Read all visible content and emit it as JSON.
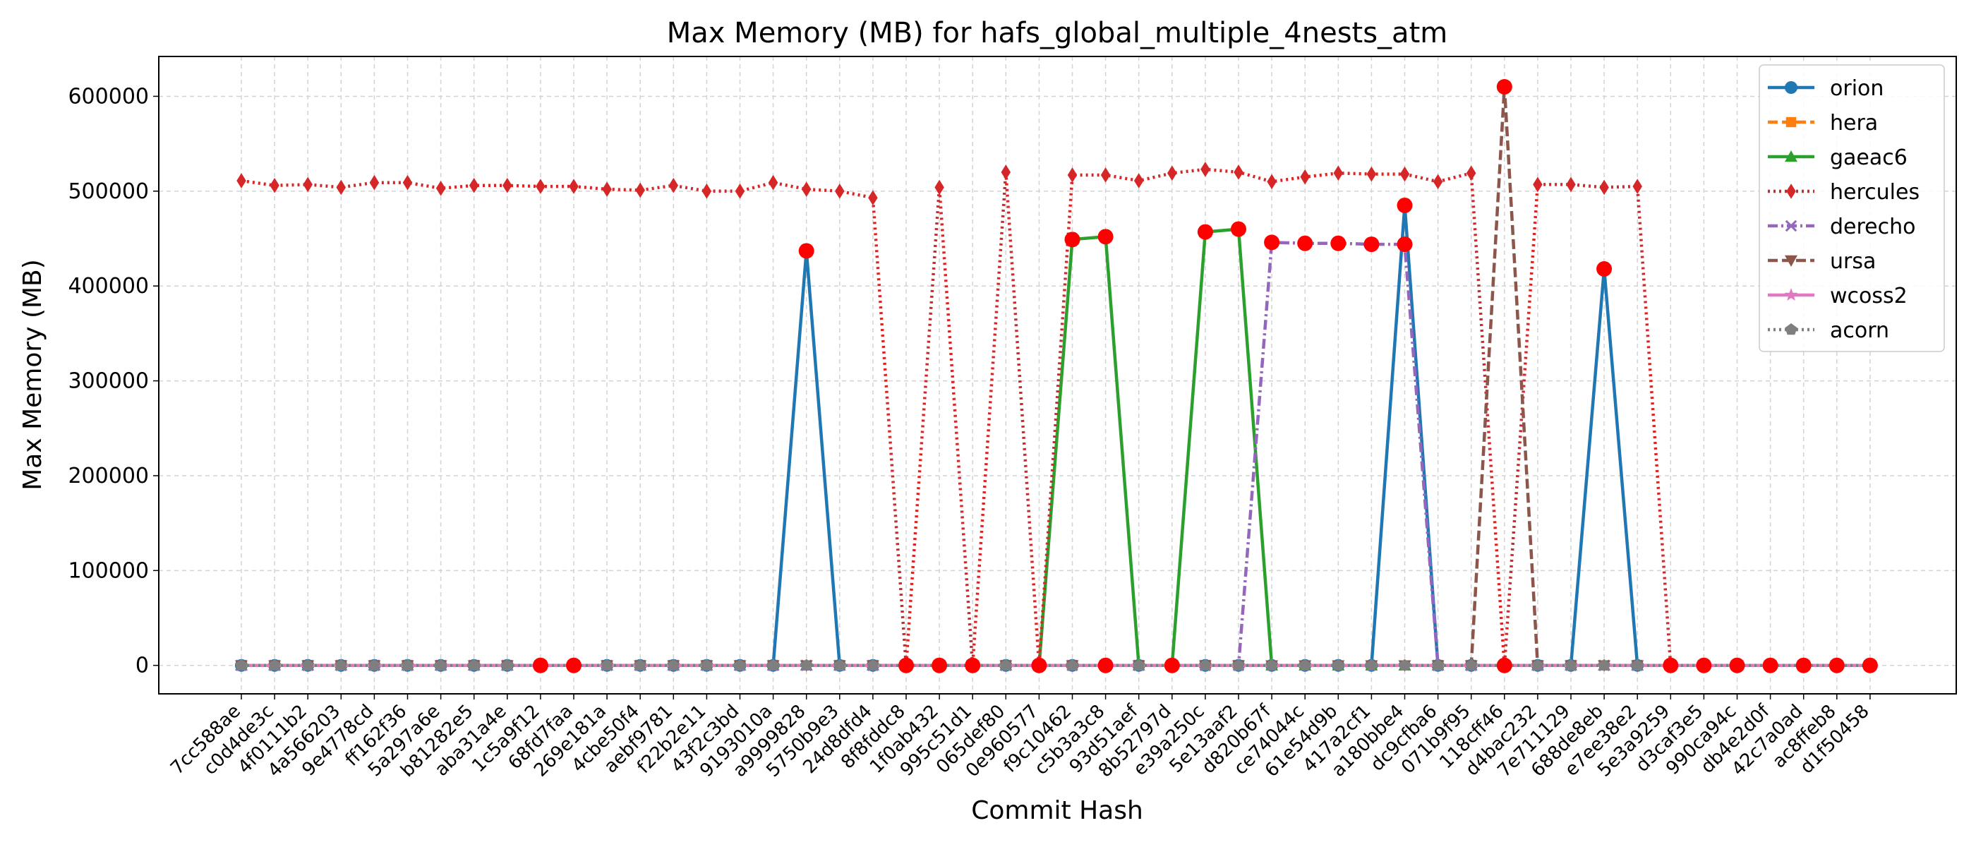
{
  "chart_data": {
    "type": "line",
    "title": "Max Memory (MB) for hafs_global_multiple_4nests_atm",
    "xlabel": "Commit Hash",
    "ylabel": "Max Memory (MB)",
    "ylim": [
      -30000,
      642000
    ],
    "yticks": [
      0,
      100000,
      200000,
      300000,
      400000,
      500000,
      600000
    ],
    "grid": true,
    "legend_position": "top-right",
    "categories": [
      "7cc588ae",
      "c0d4de3c",
      "4f0111b2",
      "4a566203",
      "9e4778cd",
      "ff162f36",
      "5a297a6e",
      "b81282e5",
      "aba31a4e",
      "1c5a9f12",
      "68fd7faa",
      "269e181a",
      "4cbe50f4",
      "aebf9781",
      "f22b2e11",
      "43f2c3bd",
      "9193010a",
      "a9999828",
      "5750b9e3",
      "24d8dfd4",
      "8f8fddc8",
      "1f0ab432",
      "995c51d1",
      "065def80",
      "0e960577",
      "f9c10462",
      "c5b3a3c8",
      "93d51aef",
      "8b52797d",
      "e39a250c",
      "5e13aaf2",
      "d820b67f",
      "ce74044c",
      "61e54d9b",
      "417a2cf1",
      "a180bbe4",
      "dc9cfba6",
      "071b9f95",
      "118cff46",
      "d4bac232",
      "7e711129",
      "688de8eb",
      "e7ee38e2",
      "5e3a9259",
      "d3caf3e5",
      "990ca94c",
      "db4e2d0f",
      "42c7a0ad",
      "ac8ffeb8",
      "d1f50458"
    ],
    "series": [
      {
        "name": "orion",
        "color": "#1f77b4",
        "dash": "solid",
        "marker": "circle",
        "values": [
          0,
          0,
          0,
          0,
          0,
          0,
          0,
          0,
          0,
          0,
          0,
          0,
          0,
          0,
          0,
          0,
          0,
          437000,
          0,
          0,
          0,
          0,
          0,
          0,
          0,
          0,
          0,
          0,
          0,
          0,
          0,
          0,
          0,
          0,
          0,
          485000,
          0,
          0,
          0,
          0,
          0,
          418000,
          0,
          0,
          0,
          0,
          0,
          0,
          0,
          0
        ]
      },
      {
        "name": "hera",
        "color": "#ff7f0e",
        "dash": "dashed",
        "marker": "square",
        "values": [
          0,
          0,
          0,
          0,
          0,
          0,
          0,
          0,
          0,
          0,
          0,
          0,
          0,
          0,
          0,
          0,
          0,
          0,
          0,
          0,
          0,
          0,
          0,
          0,
          0,
          0,
          0,
          0,
          0,
          0,
          0,
          0,
          0,
          0,
          0,
          0,
          0,
          0,
          0,
          0,
          0,
          0,
          0,
          0,
          0,
          0,
          0,
          0,
          0,
          0
        ]
      },
      {
        "name": "gaeac6",
        "color": "#2ca02c",
        "dash": "solid",
        "marker": "triangle",
        "values": [
          0,
          0,
          0,
          0,
          0,
          0,
          0,
          0,
          0,
          0,
          0,
          0,
          0,
          0,
          0,
          0,
          0,
          0,
          0,
          0,
          0,
          0,
          0,
          0,
          0,
          449000,
          452000,
          0,
          0,
          457000,
          460000,
          0,
          0,
          0,
          0,
          0,
          0,
          0,
          0,
          0,
          0,
          0,
          0,
          0,
          0,
          0,
          0,
          0,
          0,
          0
        ]
      },
      {
        "name": "hercules",
        "color": "#d62728",
        "dash": "dotted",
        "marker": "diamond",
        "values": [
          511000,
          506000,
          507000,
          504000,
          509000,
          509000,
          503000,
          506000,
          506000,
          505000,
          505000,
          502000,
          501000,
          506000,
          500000,
          500000,
          509000,
          502000,
          500000,
          493000,
          0,
          504000,
          0,
          520000,
          0,
          517000,
          517000,
          511000,
          519000,
          523000,
          520000,
          510000,
          515000,
          519000,
          518000,
          518000,
          510000,
          519000,
          0,
          507000,
          507000,
          504000,
          505000,
          0,
          0,
          0,
          0,
          0,
          0,
          0
        ]
      },
      {
        "name": "derecho",
        "color": "#9467bd",
        "dash": "dashdot",
        "marker": "x",
        "values": [
          0,
          0,
          0,
          0,
          0,
          0,
          0,
          0,
          0,
          0,
          0,
          0,
          0,
          0,
          0,
          0,
          0,
          0,
          0,
          0,
          0,
          0,
          0,
          0,
          0,
          0,
          0,
          0,
          0,
          0,
          0,
          446000,
          445000,
          445000,
          444000,
          444000,
          0,
          0,
          0,
          0,
          0,
          0,
          0,
          0,
          0,
          0,
          0,
          0,
          0,
          0
        ]
      },
      {
        "name": "ursa",
        "color": "#8c564b",
        "dash": "dashed",
        "marker": "triangle-down",
        "values": [
          0,
          0,
          0,
          0,
          0,
          0,
          0,
          0,
          0,
          0,
          0,
          0,
          0,
          0,
          0,
          0,
          0,
          0,
          0,
          0,
          0,
          0,
          0,
          0,
          0,
          0,
          0,
          0,
          0,
          0,
          0,
          0,
          0,
          0,
          0,
          0,
          0,
          0,
          610000,
          0,
          0,
          0,
          0,
          0,
          0,
          0,
          0,
          0,
          0,
          0
        ]
      },
      {
        "name": "wcoss2",
        "color": "#e377c2",
        "dash": "solid",
        "marker": "star",
        "values": [
          0,
          0,
          0,
          0,
          0,
          0,
          0,
          0,
          0,
          0,
          0,
          0,
          0,
          0,
          0,
          0,
          0,
          0,
          0,
          0,
          0,
          0,
          0,
          0,
          0,
          0,
          0,
          0,
          0,
          0,
          0,
          0,
          0,
          0,
          0,
          0,
          0,
          0,
          0,
          0,
          0,
          0,
          0,
          0,
          0,
          0,
          0,
          0,
          0,
          0
        ]
      },
      {
        "name": "acorn",
        "color": "#7f7f7f",
        "dash": "dotted",
        "marker": "pentagon",
        "values": [
          0,
          0,
          0,
          0,
          0,
          0,
          0,
          0,
          0,
          0,
          0,
          0,
          0,
          0,
          0,
          0,
          0,
          0,
          0,
          0,
          0,
          0,
          0,
          0,
          0,
          0,
          0,
          0,
          0,
          0,
          0,
          0,
          0,
          0,
          0,
          0,
          0,
          0,
          0,
          0,
          0,
          0,
          0,
          0,
          0,
          0,
          0,
          0,
          0,
          0
        ]
      }
    ],
    "highlighted_points": [
      {
        "x": "1c5a9f12",
        "y": 0
      },
      {
        "x": "68fd7faa",
        "y": 0
      },
      {
        "x": "a9999828",
        "y": 437000
      },
      {
        "x": "8f8fddc8",
        "y": 0
      },
      {
        "x": "1f0ab432",
        "y": 0
      },
      {
        "x": "995c51d1",
        "y": 0
      },
      {
        "x": "0e960577",
        "y": 0
      },
      {
        "x": "f9c10462",
        "y": 449000
      },
      {
        "x": "c5b3a3c8",
        "y": 452000
      },
      {
        "x": "c5b3a3c8",
        "y": 0
      },
      {
        "x": "8b52797d",
        "y": 0
      },
      {
        "x": "e39a250c",
        "y": 457000
      },
      {
        "x": "5e13aaf2",
        "y": 460000
      },
      {
        "x": "d820b67f",
        "y": 446000
      },
      {
        "x": "ce74044c",
        "y": 445000
      },
      {
        "x": "61e54d9b",
        "y": 445000
      },
      {
        "x": "417a2cf1",
        "y": 444000
      },
      {
        "x": "a180bbe4",
        "y": 485000
      },
      {
        "x": "a180bbe4",
        "y": 444000
      },
      {
        "x": "118cff46",
        "y": 610000
      },
      {
        "x": "118cff46",
        "y": 0
      },
      {
        "x": "688de8eb",
        "y": 418000
      },
      {
        "x": "5e3a9259",
        "y": 0
      },
      {
        "x": "d3caf3e5",
        "y": 0
      },
      {
        "x": "990ca94c",
        "y": 0
      },
      {
        "x": "db4e2d0f",
        "y": 0
      },
      {
        "x": "42c7a0ad",
        "y": 0
      },
      {
        "x": "ac8ffeb8",
        "y": 0
      },
      {
        "x": "d1f50458",
        "y": 0
      }
    ],
    "highlight_color": "#ff0000"
  }
}
